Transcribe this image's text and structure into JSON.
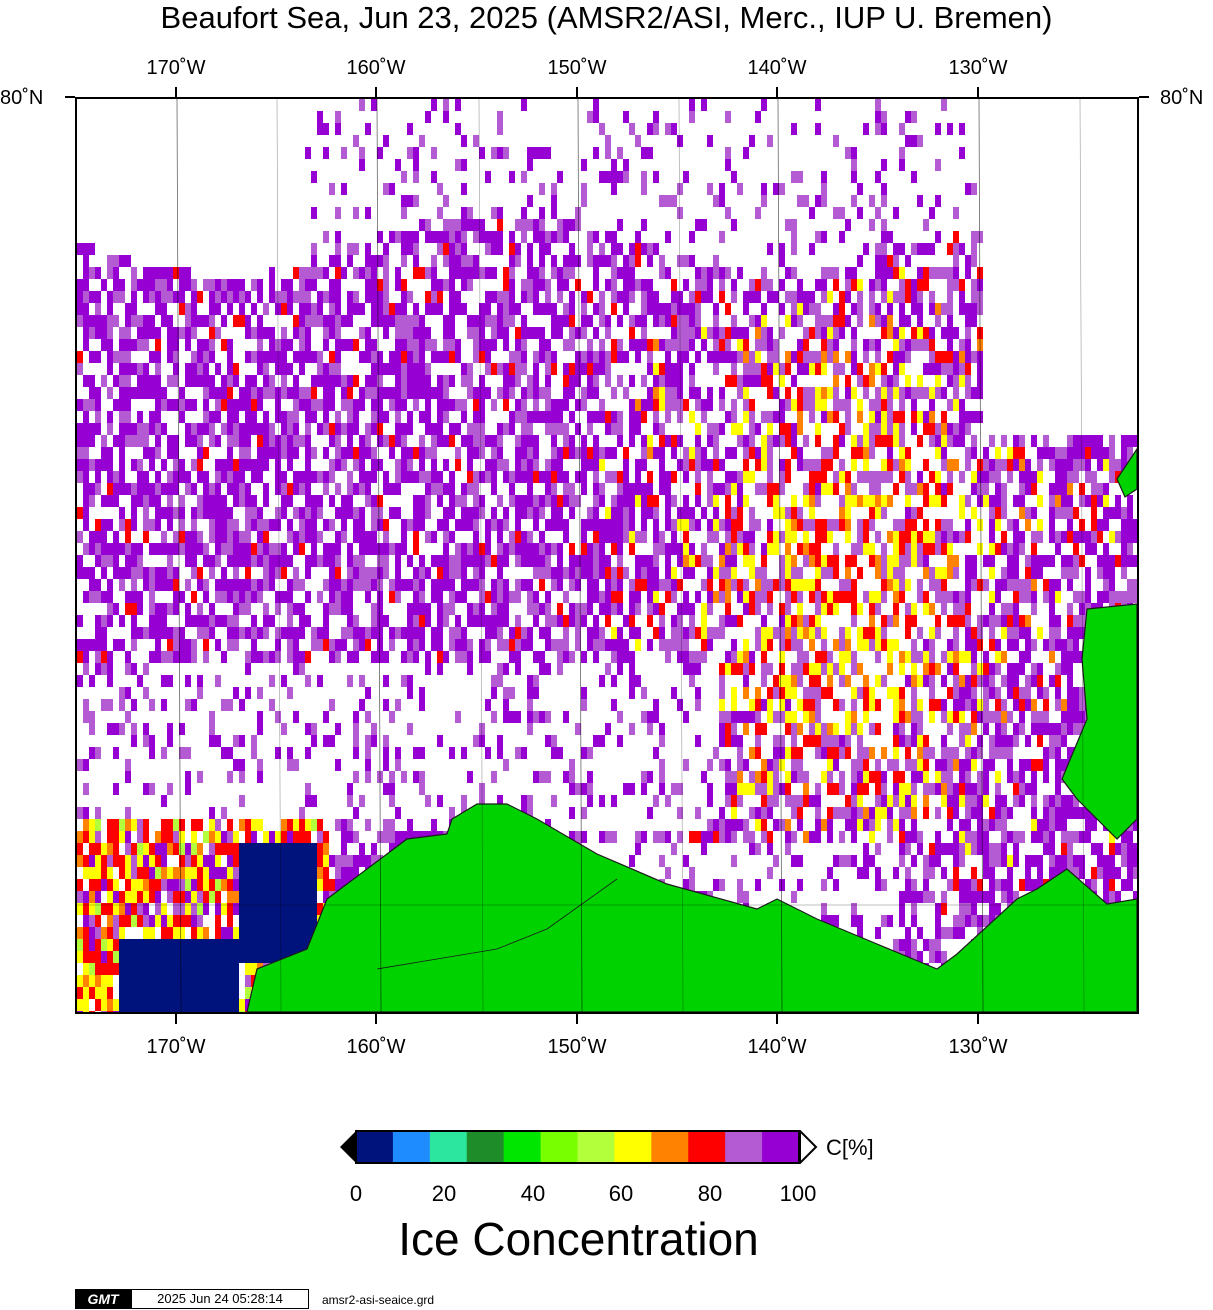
{
  "title": "Beaufort Sea, Jun 23, 2025 (AMSR2/ASI, Merc., IUP U. Bremen)",
  "map": {
    "lon_labels": [
      "170˚W",
      "160˚W",
      "150˚W",
      "140˚W",
      "130˚W"
    ],
    "lat_label_left": "80˚N",
    "lat_label_right": "80˚N",
    "land_color": "#00d200",
    "coast_color": "#1a1a1a"
  },
  "colorbar": {
    "colors": [
      "#00137c",
      "#1e8cff",
      "#2ce6a0",
      "#1e8c28",
      "#00e600",
      "#78ff00",
      "#b4ff3c",
      "#ffff00",
      "#ff8200",
      "#ff0000",
      "#b45ad2",
      "#9600d2"
    ],
    "tick_labels": [
      "0",
      "20",
      "40",
      "60",
      "80",
      "100"
    ],
    "unit_label": "C[%]",
    "title": "Ice Concentration"
  },
  "footer": {
    "logo": "GMT",
    "timestamp": "2025 Jun 24 05:28:14",
    "grid_file": "amsr2-asi-seaice.grd"
  }
}
